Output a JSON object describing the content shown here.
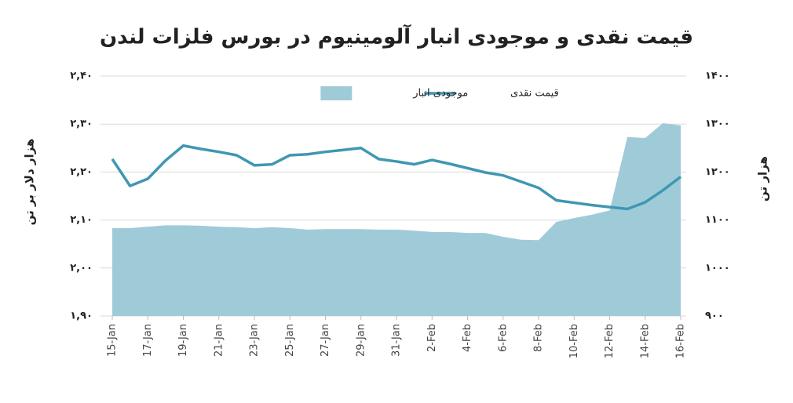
{
  "chart_data": {
    "type": "combo",
    "title": "قیمت نقدی و موجودی انبار آلومینیوم در بورس فلزات لندن",
    "y_label": "هزار دلار بر تن",
    "y2_label": "هزار تن",
    "categories": [
      "15-Jan",
      null,
      "17-Jan",
      null,
      "19-Jan",
      null,
      "21-Jan",
      null,
      "23-Jan",
      null,
      "25-Jan",
      null,
      "27-Jan",
      null,
      "29-Jan",
      null,
      "31-Jan",
      null,
      "2-Feb",
      null,
      "4-Feb",
      null,
      "6-Feb",
      null,
      "8-Feb",
      null,
      "10-Feb",
      null,
      "12-Feb",
      null,
      "14-Feb",
      null,
      "16-Feb"
    ],
    "series": [
      {
        "name": "موجودی انبار",
        "type": "area",
        "axis": "y2",
        "color": "#9fcbd9",
        "values": [
          1083,
          1083,
          1086,
          1089,
          1089,
          1088,
          1086,
          1085,
          1083,
          1085,
          1083,
          1080,
          1081,
          1081,
          1081,
          1080,
          1080,
          1078,
          1075,
          1075,
          1073,
          1073,
          1065,
          1059,
          1058,
          1096,
          1104,
          1111,
          1120,
          1273,
          1271,
          1302,
          1297
        ]
      },
      {
        "name": "قیمت نقدی",
        "type": "line",
        "axis": "y",
        "color": "#3f97b2",
        "values": [
          2.227,
          2.171,
          2.186,
          2.224,
          2.255,
          2.248,
          2.242,
          2.235,
          2.214,
          2.216,
          2.235,
          2.237,
          2.242,
          2.246,
          2.25,
          2.227,
          2.222,
          2.216,
          2.225,
          2.217,
          2.208,
          2.199,
          2.193,
          2.18,
          2.167,
          2.141,
          2.136,
          2.131,
          2.127,
          2.123,
          2.137,
          2.162,
          2.19
        ]
      }
    ],
    "ylim": [
      1.9,
      2.4
    ],
    "yticks": [
      {
        "value": 1.9,
        "label": "۱,۹۰"
      },
      {
        "value": 2.0,
        "label": "۲,۰۰"
      },
      {
        "value": 2.1,
        "label": "۲,۱۰"
      },
      {
        "value": 2.2,
        "label": "۲,۲۰"
      },
      {
        "value": 2.3,
        "label": "۲,۳۰"
      },
      {
        "value": 2.4,
        "label": "۲,۴۰"
      }
    ],
    "y2lim": [
      900,
      1400
    ],
    "y2ticks": [
      {
        "value": 900,
        "label": "۹۰۰"
      },
      {
        "value": 1000,
        "label": "۱۰۰۰"
      },
      {
        "value": 1100,
        "label": "۱۱۰۰"
      },
      {
        "value": 1200,
        "label": "۱۲۰۰"
      },
      {
        "value": 1300,
        "label": "۱۳۰۰"
      },
      {
        "value": 1400,
        "label": "۱۴۰۰"
      }
    ],
    "grid": true,
    "legend": "top"
  }
}
